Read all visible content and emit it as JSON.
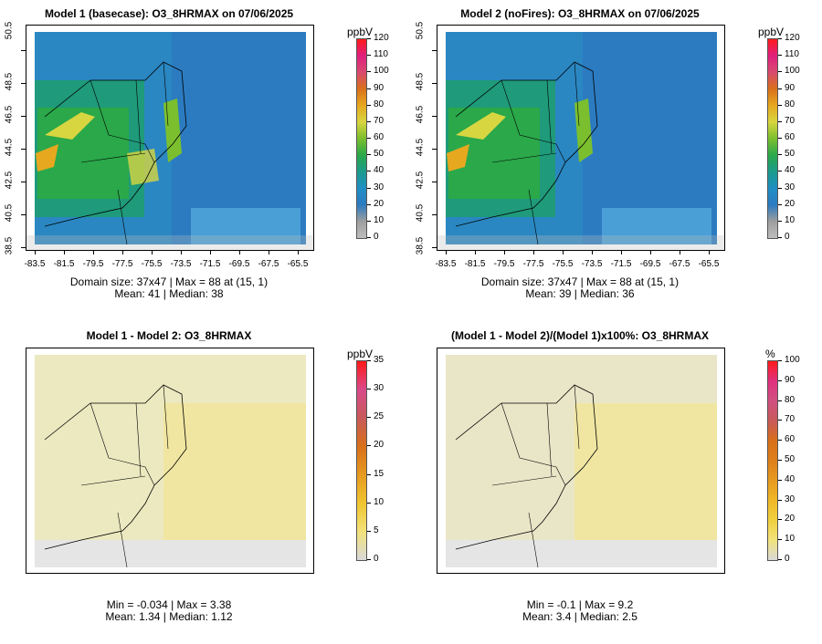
{
  "panels": [
    {
      "id": "p1",
      "title": "Model 1 (basecase): O3_8HRMAX on 07/06/2025",
      "unit": "ppbV",
      "legend_ticks": [
        "0",
        "10",
        "20",
        "30",
        "40",
        "50",
        "60",
        "70",
        "80",
        "90",
        "100",
        "110",
        "120"
      ],
      "legend_colors": [
        "#bdbdbd",
        "#9e9e9e",
        "#2c7bc1",
        "#1f8ec4",
        "#1b9b8d",
        "#2aa84a",
        "#7bbf2e",
        "#d7d640",
        "#e6a81f",
        "#d9701a",
        "#d94a6f",
        "#e0207f",
        "#ff1a1a"
      ],
      "stats_line1": "Domain size: 37x47 | Max = 88 at (15, 1)",
      "stats_line2": "Mean: 41 |  Median: 38",
      "yticks": [
        "38.5",
        "40.5",
        "42.5",
        "44.5",
        "46.5",
        "48.5",
        "50.5"
      ],
      "xticks": [
        "-83.5",
        "-81.5",
        "-79.5",
        "-77.5",
        "-75.5",
        "-73.5",
        "-71.5",
        "-69.5",
        "-67.5",
        "-65.5"
      ]
    },
    {
      "id": "p2",
      "title": "Model 2 (noFires): O3_8HRMAX on 07/06/2025",
      "unit": "ppbV",
      "legend_ticks": [
        "0",
        "10",
        "20",
        "30",
        "40",
        "50",
        "60",
        "70",
        "80",
        "90",
        "100",
        "110",
        "120"
      ],
      "legend_colors": [
        "#bdbdbd",
        "#9e9e9e",
        "#2c7bc1",
        "#1f8ec4",
        "#1b9b8d",
        "#2aa84a",
        "#7bbf2e",
        "#d7d640",
        "#e6a81f",
        "#d9701a",
        "#d94a6f",
        "#e0207f",
        "#ff1a1a"
      ],
      "stats_line1": "Domain size: 37x47 | Max = 88 at (15, 1)",
      "stats_line2": "Mean: 39 |  Median: 36",
      "yticks": [
        "38.5",
        "40.5",
        "42.5",
        "44.5",
        "46.5",
        "48.5",
        "50.5"
      ],
      "xticks": [
        "-83.5",
        "-81.5",
        "-79.5",
        "-77.5",
        "-75.5",
        "-73.5",
        "-71.5",
        "-69.5",
        "-67.5",
        "-65.5"
      ]
    },
    {
      "id": "p3",
      "title": "Model 1 - Model 2: O3_8HRMAX",
      "unit": "ppbV",
      "legend_ticks": [
        "0",
        "5",
        "10",
        "15",
        "20",
        "25",
        "30",
        "35"
      ],
      "legend_colors": [
        "#d9d9d9",
        "#f2e27a",
        "#f0c530",
        "#e69a20",
        "#d9701a",
        "#c85a5a",
        "#d94a8a",
        "#ff1a1a"
      ],
      "stats_line1": "Min = -0.034 | Max = 3.38",
      "stats_line2": "Mean: 1.34 |  Median: 1.12",
      "yticks": [],
      "xticks": []
    },
    {
      "id": "p4",
      "title": "(Model 1 - Model 2)/(Model 1)x100%: O3_8HRMAX",
      "unit": "%",
      "legend_ticks": [
        "0",
        "10",
        "20",
        "30",
        "40",
        "50",
        "60",
        "70",
        "80",
        "90",
        "100"
      ],
      "legend_colors": [
        "#d9d9d9",
        "#f2e27a",
        "#f0d040",
        "#f0b828",
        "#e69a20",
        "#dd7f1a",
        "#d9701a",
        "#c85a5a",
        "#d05080",
        "#e0307f",
        "#ff1a1a"
      ],
      "stats_line1": "Min = -0.1 | Max = 9.2",
      "stats_line2": "Mean: 3.4 |  Median: 2.5",
      "yticks": [],
      "xticks": []
    }
  ]
}
